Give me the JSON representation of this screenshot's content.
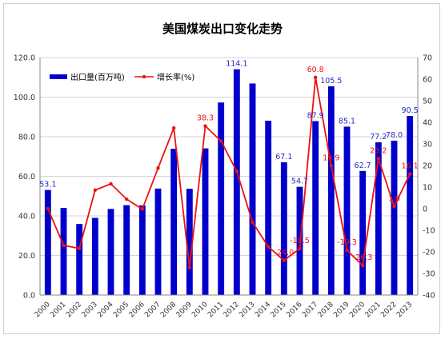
{
  "chart_data": {
    "type": "bar",
    "title": "美国煤炭出口变化走势",
    "categories": [
      "2000",
      "2001",
      "2002",
      "2003",
      "2004",
      "2005",
      "2006",
      "2007",
      "2008",
      "2009",
      "2010",
      "2011",
      "2012",
      "2013",
      "2014",
      "2015",
      "2016",
      "2017",
      "2018",
      "2019",
      "2020",
      "2021",
      "2022",
      "2023"
    ],
    "series": [
      {
        "name": "出口量(百万吨)",
        "type": "bar",
        "axis": "left",
        "color": "#0000cc",
        "values": [
          53.1,
          44.0,
          35.9,
          39.0,
          43.5,
          45.4,
          45.3,
          53.8,
          73.9,
          53.7,
          74.1,
          97.3,
          114.1,
          106.9,
          88.1,
          67.1,
          54.7,
          87.9,
          105.5,
          85.1,
          62.7,
          77.2,
          78.0,
          90.5
        ],
        "labels": {
          "2000": "53.1",
          "2012": "114.1",
          "2015": "67.1",
          "2016": "54.7",
          "2017": "87.9",
          "2018": "105.5",
          "2019": "85.1",
          "2020": "62.7",
          "2021": "77.2",
          "2022": "78.0",
          "2023": "90.5"
        }
      },
      {
        "name": "增长率(%)",
        "type": "line",
        "axis": "right",
        "color": "#ee1111",
        "values": [
          0.0,
          -17.0,
          -18.4,
          8.6,
          11.5,
          4.4,
          -0.2,
          18.8,
          37.4,
          -27.3,
          38.3,
          31.3,
          17.3,
          -6.3,
          -17.6,
          -24.0,
          -18.5,
          60.8,
          19.9,
          -19.3,
          -26.3,
          23.2,
          1.0,
          16.1
        ],
        "labels": {
          "2010": "38.3",
          "2015": "-24.0",
          "2016": "-18.5",
          "2017": "60.8",
          "2018": "19.9",
          "2019": "-19.3",
          "2020": "-26.3",
          "2021": "23.2",
          "2022": "1.0",
          "2023": "16.1"
        }
      }
    ],
    "y_left": {
      "min": 0,
      "max": 120,
      "step": 20,
      "ticks": [
        "0.0",
        "20.0",
        "40.0",
        "60.0",
        "80.0",
        "100.0",
        "120.0"
      ]
    },
    "y_right": {
      "min": -40,
      "max": 70,
      "step": 10,
      "ticks": [
        "-40",
        "-30",
        "-20",
        "-10",
        "0",
        "10",
        "20",
        "30",
        "40",
        "50",
        "60",
        "70"
      ]
    },
    "grid": true,
    "legend_position": "top-left"
  }
}
